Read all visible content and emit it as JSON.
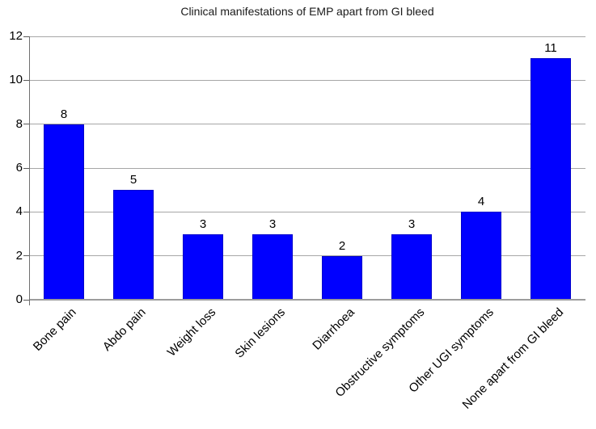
{
  "chart_data": {
    "type": "bar",
    "title": "Clinical manifestations of EMP apart from GI bleed",
    "categories": [
      "Bone pain",
      "Abdo pain",
      "Weight loss",
      "Skin lesions",
      "Diarrhoea",
      "Obstructive symptoms",
      "Other UGI symptoms",
      "None apart from GI bleed"
    ],
    "values": [
      8,
      5,
      3,
      3,
      2,
      3,
      4,
      11
    ],
    "xlabel": "",
    "ylabel": "",
    "ylim": [
      0,
      12
    ],
    "yticks": [
      0,
      2,
      4,
      6,
      8,
      10,
      12
    ],
    "grid": true,
    "legend": false,
    "bar_labels_shown": true,
    "x_label_rotation_deg": 45
  },
  "colors": {
    "bar_fill": "#0000ff",
    "bar_border": "#0000cc",
    "gridline": "#a6a6a6",
    "baseline": "#9c9c9c",
    "y_axis_line": "#6f6f6f",
    "tick": "#595959",
    "text": "#000000",
    "background": "#ffffff"
  }
}
